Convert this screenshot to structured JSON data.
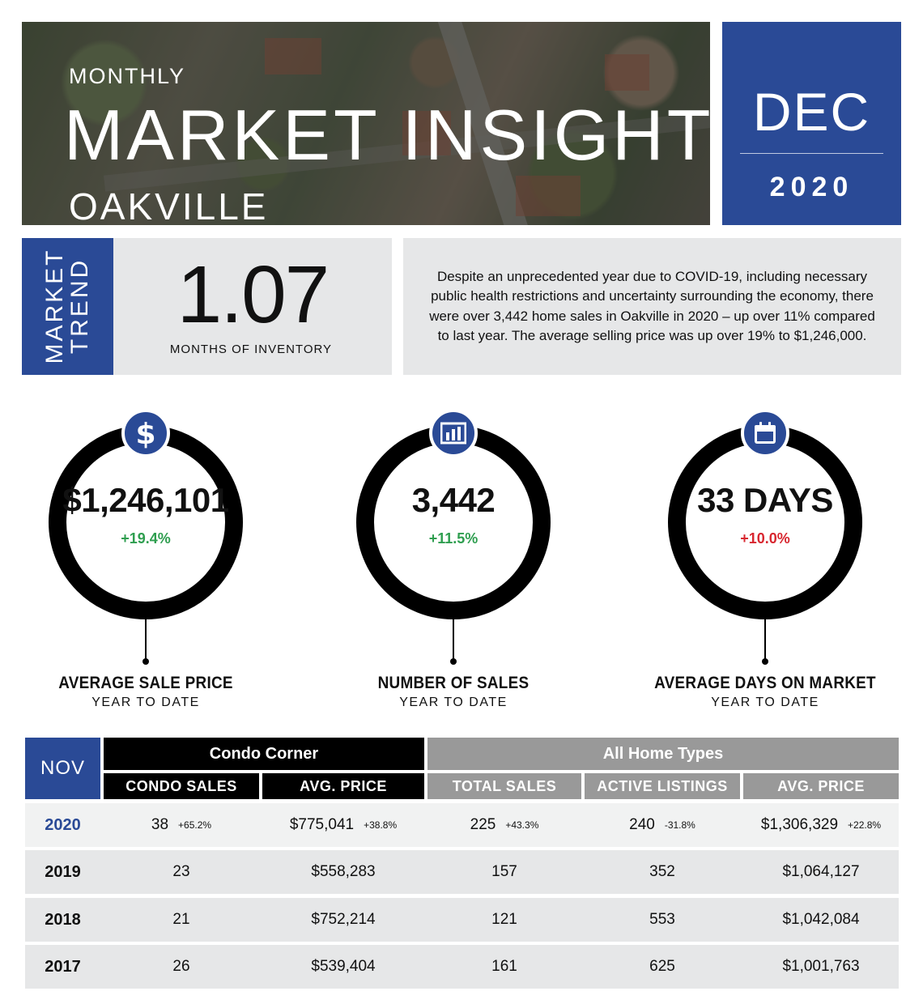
{
  "header": {
    "overline": "MONTHLY",
    "title": "MARKET INSIGHT",
    "city": "OAKVILLE",
    "month": "DEC",
    "year": "2020"
  },
  "market_trend": {
    "label_line1": "MARKET",
    "label_line2": "TREND",
    "value": "1.07",
    "value_label": "MONTHS OF INVENTORY",
    "description": "Despite an unprecedented year due to COVID-19, including necessary public health restrictions and uncertainty surrounding the economy, there were over 3,442 home sales in Oakville in 2020 – up over 11% compared to last year. The average selling price was up over 19% to $1,246,000."
  },
  "stats": [
    {
      "icon": "dollar-icon",
      "value": "$1,246,101",
      "change": "+19.4%",
      "change_color": "#2e9e4f",
      "title": "AVERAGE SALE PRICE",
      "subtitle": "YEAR TO DATE"
    },
    {
      "icon": "bar-chart-icon",
      "value": "3,442",
      "change": "+11.5%",
      "change_color": "#2e9e4f",
      "title": "NUMBER OF SALES",
      "subtitle": "YEAR TO DATE"
    },
    {
      "icon": "calendar-icon",
      "value": "33 DAYS",
      "change": "+10.0%",
      "change_color": "#d8262f",
      "title": "AVERAGE DAYS ON MARKET",
      "subtitle": "YEAR TO DATE"
    }
  ],
  "table": {
    "period": "NOV",
    "group_condo": "Condo Corner",
    "group_all": "All Home Types",
    "columns": [
      "CONDO SALES",
      "AVG. PRICE",
      "TOTAL SALES",
      "ACTIVE LISTINGS",
      "AVG. PRICE"
    ],
    "rows": [
      {
        "year": "2020",
        "cells": [
          {
            "v": "38",
            "p": "+65.2%"
          },
          {
            "v": "$775,041",
            "p": "+38.8%"
          },
          {
            "v": "225",
            "p": "+43.3%"
          },
          {
            "v": "240",
            "p": "-31.8%"
          },
          {
            "v": "$1,306,329",
            "p": "+22.8%"
          }
        ]
      },
      {
        "year": "2019",
        "cells": [
          {
            "v": "23",
            "p": ""
          },
          {
            "v": "$558,283",
            "p": ""
          },
          {
            "v": "157",
            "p": ""
          },
          {
            "v": "352",
            "p": ""
          },
          {
            "v": "$1,064,127",
            "p": ""
          }
        ]
      },
      {
        "year": "2018",
        "cells": [
          {
            "v": "21",
            "p": ""
          },
          {
            "v": "$752,214",
            "p": ""
          },
          {
            "v": "121",
            "p": ""
          },
          {
            "v": "553",
            "p": ""
          },
          {
            "v": "$1,042,084",
            "p": ""
          }
        ]
      },
      {
        "year": "2017",
        "cells": [
          {
            "v": "26",
            "p": ""
          },
          {
            "v": "$539,404",
            "p": ""
          },
          {
            "v": "161",
            "p": ""
          },
          {
            "v": "625",
            "p": ""
          },
          {
            "v": "$1,001,763",
            "p": ""
          }
        ]
      }
    ]
  },
  "colors": {
    "brand_blue": "#2a4a96",
    "positive": "#2e9e4f",
    "negative": "#d8262f",
    "panel_gray": "#e6e7e8",
    "header_gray": "#999999"
  }
}
